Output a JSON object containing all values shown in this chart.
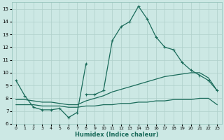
{
  "xlabel": "Humidex (Indice chaleur)",
  "xlim": [
    -0.5,
    23.5
  ],
  "ylim": [
    6,
    15.5
  ],
  "xticks": [
    0,
    1,
    2,
    3,
    4,
    5,
    6,
    7,
    8,
    9,
    10,
    11,
    12,
    13,
    14,
    15,
    16,
    17,
    18,
    19,
    20,
    21,
    22,
    23
  ],
  "yticks": [
    6,
    7,
    8,
    9,
    10,
    11,
    12,
    13,
    14,
    15
  ],
  "bg_color": "#cce8e4",
  "line_color": "#1a6b5a",
  "grid_color": "#aecfca",
  "series1_y": [
    9.4,
    8.2,
    7.3,
    7.1,
    7.1,
    7.2,
    6.5,
    6.9,
    10.7
  ],
  "series1_x": [
    0,
    1,
    2,
    3,
    4,
    5,
    6,
    7,
    8
  ],
  "series2_x": [
    8,
    9,
    10,
    11,
    12,
    13,
    14,
    15,
    16,
    17,
    18,
    19,
    20,
    21,
    22,
    23
  ],
  "series2_y": [
    8.3,
    8.3,
    8.6,
    12.5,
    13.6,
    14.0,
    15.2,
    14.2,
    12.8,
    12.0,
    11.8,
    10.8,
    10.2,
    9.8,
    9.4,
    8.6
  ],
  "series3_x": [
    0,
    1,
    2,
    3,
    4,
    5,
    6,
    7,
    8,
    9,
    10,
    11,
    12,
    13,
    14,
    15,
    16,
    17,
    18,
    19,
    20,
    21,
    22,
    23
  ],
  "series3_y": [
    7.5,
    7.5,
    7.5,
    7.4,
    7.4,
    7.4,
    7.3,
    7.3,
    7.4,
    7.4,
    7.5,
    7.5,
    7.6,
    7.6,
    7.7,
    7.7,
    7.8,
    7.8,
    7.9,
    7.9,
    7.9,
    8.0,
    8.0,
    7.5
  ],
  "series4_x": [
    0,
    1,
    2,
    3,
    4,
    5,
    6,
    7,
    8,
    9,
    10,
    11,
    12,
    13,
    14,
    15,
    16,
    17,
    18,
    19,
    20,
    21,
    22,
    23
  ],
  "series4_y": [
    7.9,
    7.9,
    7.8,
    7.7,
    7.7,
    7.6,
    7.5,
    7.5,
    7.8,
    8.0,
    8.2,
    8.5,
    8.7,
    8.9,
    9.1,
    9.3,
    9.5,
    9.7,
    9.8,
    9.9,
    10.0,
    10.0,
    9.6,
    8.6
  ]
}
